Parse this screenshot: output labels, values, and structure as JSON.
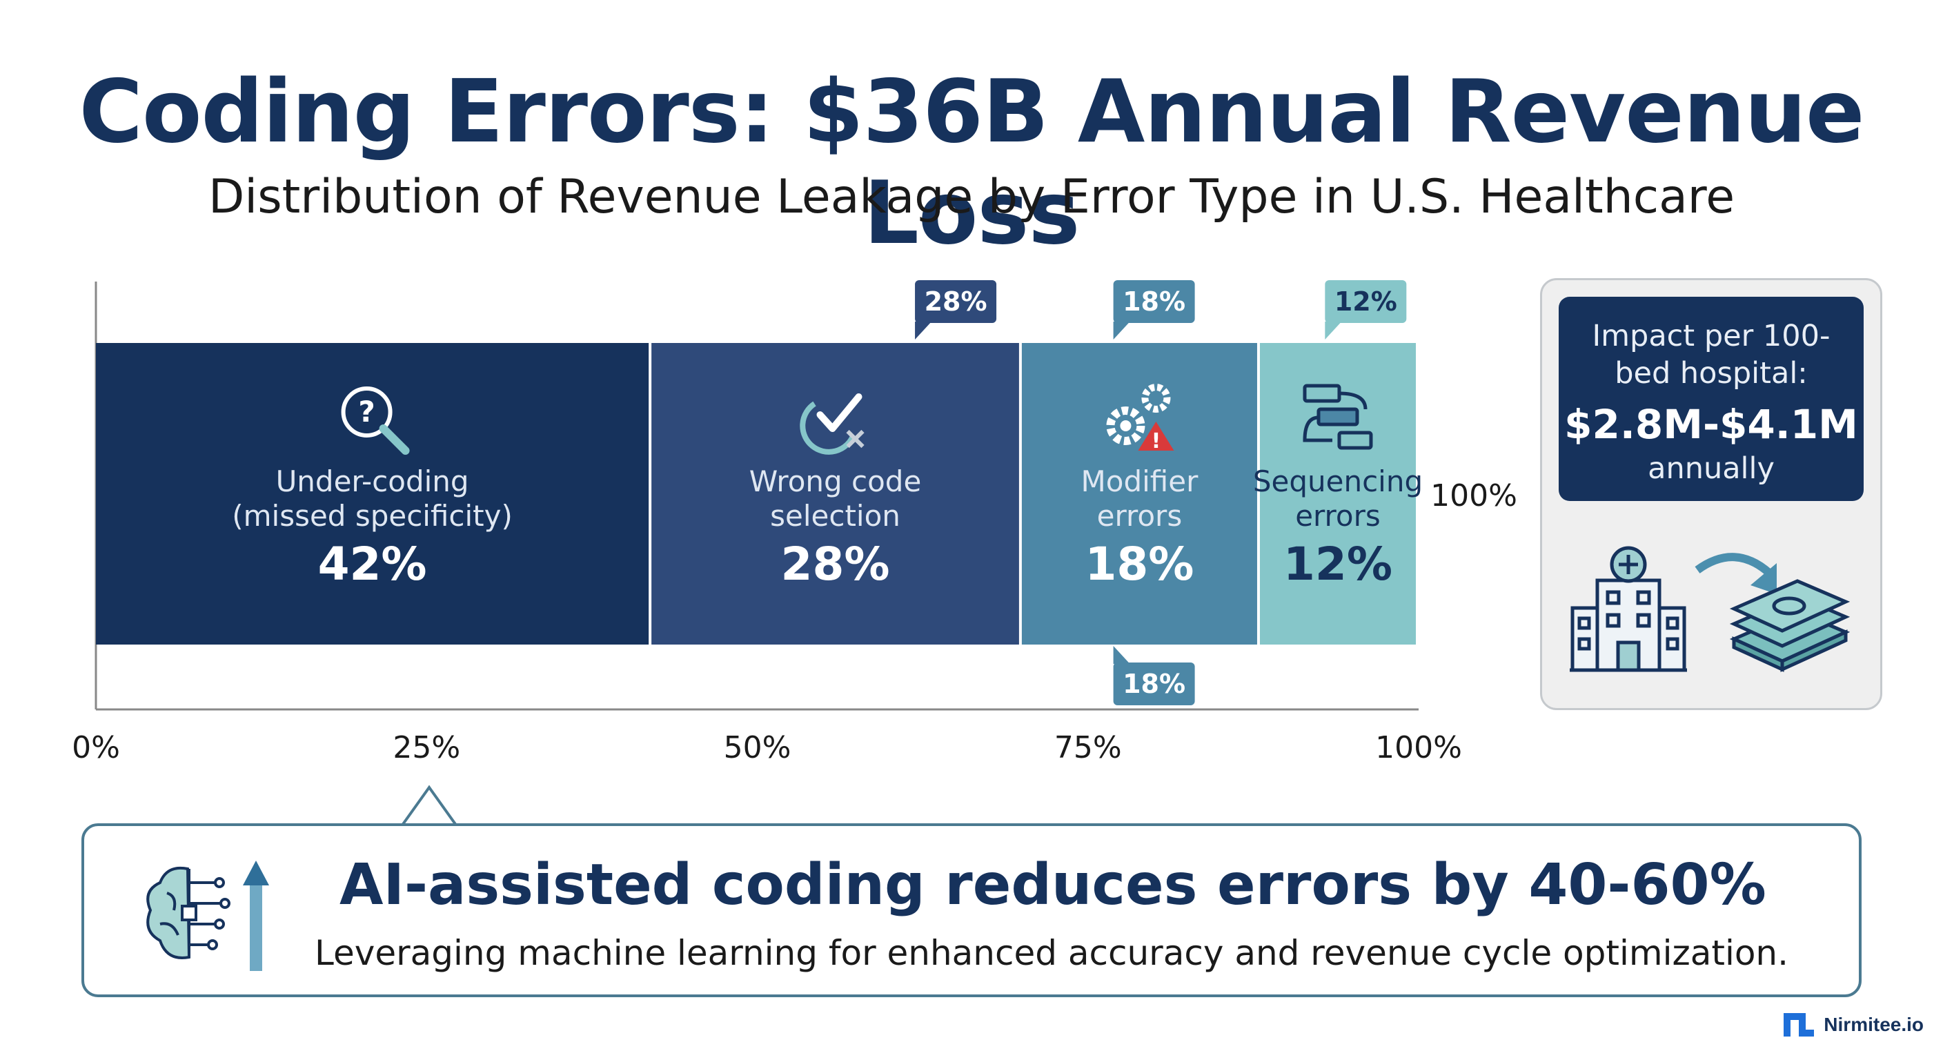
{
  "header": {
    "title": "Coding Errors: $36B Annual Revenue Loss",
    "subtitle": "Distribution of Revenue Leakage by Error Type in U.S. Healthcare"
  },
  "chart_data": {
    "type": "bar",
    "orientation": "horizontal-stacked",
    "total_label": "100%",
    "categories": [
      "Under-coding\n(missed specificity)",
      "Wrong code\nselection",
      "Modifier\nerrors",
      "Sequencing\nerrors"
    ],
    "values": [
      42,
      28,
      18,
      12
    ],
    "value_labels": [
      "42%",
      "28%",
      "18%",
      "12%"
    ],
    "colors": [
      "#16325c",
      "#2f4a7a",
      "#4c87a6",
      "#86c6c9"
    ],
    "icons": [
      "magnifier-question-icon",
      "check-x-icon",
      "gears-warning-icon",
      "flow-sequence-icon"
    ],
    "callout_tags": [
      {
        "label": "28%",
        "at": 65,
        "position": "top"
      },
      {
        "label": "18%",
        "at": 80,
        "position": "top"
      },
      {
        "label": "12%",
        "at": 96,
        "position": "top"
      },
      {
        "label": "18%",
        "at": 80,
        "position": "bottom"
      }
    ],
    "xlim": [
      0,
      100
    ],
    "xticks": [
      0,
      25,
      50,
      75,
      100
    ],
    "xtick_labels": [
      "0%",
      "25%",
      "50%",
      "75%",
      "100%"
    ],
    "grid": false
  },
  "impact": {
    "label": "Impact per 100-bed hospital:",
    "value": "$2.8M-$4.1M",
    "period": "annually",
    "icons": [
      "hospital-icon",
      "arrow-icon",
      "money-stack-icon"
    ]
  },
  "callout": {
    "title": "AI-assisted coding reduces errors by 40-60%",
    "subtitle": "Leveraging machine learning for enhanced accuracy and revenue cycle optimization.",
    "icon": "brain-circuit-arrow-icon"
  },
  "brand": {
    "name": "Nirmitee.io"
  }
}
